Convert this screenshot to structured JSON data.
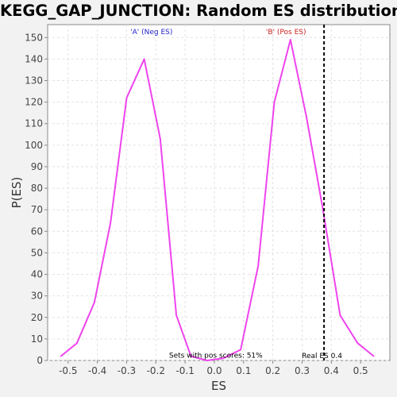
{
  "chart_data": {
    "type": "line",
    "title": "KEGG_GAP_JUNCTION: Random ES distribution",
    "xlabel": "ES",
    "ylabel": "P(ES)",
    "xlim": [
      -0.57,
      0.6
    ],
    "ylim": [
      0,
      156
    ],
    "x_ticks": [
      -0.5,
      -0.4,
      -0.3,
      -0.2,
      -0.1,
      0.0,
      0.1,
      0.2,
      0.3,
      0.4,
      0.5
    ],
    "x_tick_labels": [
      "-0.5",
      "-0.4",
      "-0.3",
      "-0.2",
      "-0.1",
      "0.0",
      "0.1",
      "0.2",
      "0.3",
      "0.4",
      "0.5"
    ],
    "y_ticks": [
      0,
      10,
      20,
      30,
      40,
      50,
      60,
      70,
      80,
      90,
      100,
      110,
      120,
      130,
      140,
      150
    ],
    "y_tick_labels": [
      "0",
      "10",
      "20",
      "30",
      "40",
      "50",
      "60",
      "70",
      "80",
      "90",
      "100",
      "110",
      "120",
      "130",
      "140",
      "150"
    ],
    "grid": true,
    "series": [
      {
        "color": "#ee44ee",
        "x": [
          -0.525,
          -0.47,
          -0.41,
          -0.355,
          -0.3,
          -0.24,
          -0.185,
          -0.13,
          -0.08,
          -0.025,
          0.03,
          0.09,
          0.15,
          0.205,
          0.26,
          0.315,
          0.37,
          0.43,
          0.49,
          0.545
        ],
        "y": [
          2,
          8,
          27,
          64,
          122,
          140,
          103,
          21,
          2,
          0,
          1,
          5,
          44,
          120,
          149,
          113,
          71,
          21,
          8,
          2
        ]
      }
    ],
    "real_es": {
      "x": 0.375,
      "label": "Real ES 0.4",
      "color": "#000000"
    },
    "annotations": [
      {
        "text": "'A' (Neg ES)",
        "x": -0.215,
        "y": 151.5,
        "color": "#2222cc"
      },
      {
        "text": "'B' (Pos ES)",
        "x": 0.245,
        "y": 151.5,
        "color": "#cc2222"
      },
      {
        "text": "Sets with pos scores: 51%",
        "x": 0.005,
        "y": 1.2,
        "color": "#000000"
      }
    ]
  }
}
